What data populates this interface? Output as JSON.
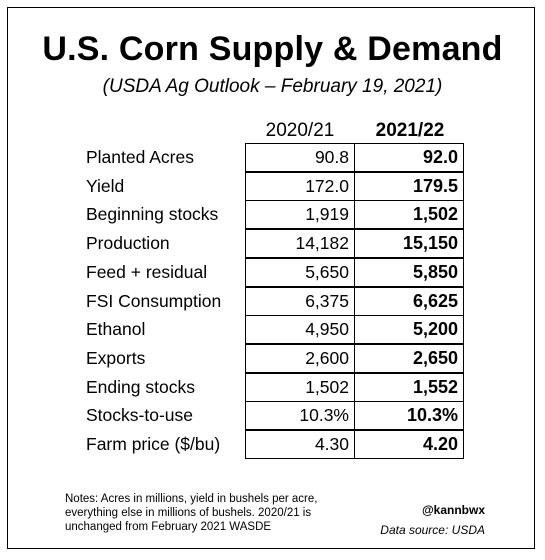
{
  "title": "U.S. Corn Supply & Demand",
  "subtitle": "(USDA Ag Outlook – February 19, 2021)",
  "columns": [
    "2020/21",
    "2021/22"
  ],
  "rows": [
    {
      "label": "Planted Acres",
      "v1": "90.8",
      "v2": "92.0"
    },
    {
      "label": "Yield",
      "v1": "172.0",
      "v2": "179.5"
    },
    {
      "label": "Beginning stocks",
      "v1": "1,919",
      "v2": "1,502"
    },
    {
      "label": "Production",
      "v1": "14,182",
      "v2": "15,150"
    },
    {
      "label": "Feed + residual",
      "v1": "5,650",
      "v2": "5,850"
    },
    {
      "label": "FSI Consumption",
      "v1": "6,375",
      "v2": "6,625"
    },
    {
      "label": "Ethanol",
      "v1": "4,950",
      "v2": "5,200"
    },
    {
      "label": "Exports",
      "v1": "2,600",
      "v2": "2,650"
    },
    {
      "label": "Ending stocks",
      "v1": "1,502",
      "v2": "1,552"
    },
    {
      "label": "Stocks-to-use",
      "v1": "10.3%",
      "v2": "10.3%"
    },
    {
      "label": "Farm price ($/bu)",
      "v1": "4.30",
      "v2": "4.20"
    }
  ],
  "notes": "Notes: Acres in millions, yield in bushels per acre, everything else in millions of bushels. 2020/21 is unchanged from February 2021 WASDE",
  "handle": "@kannbwx",
  "source": "Data source: USDA"
}
